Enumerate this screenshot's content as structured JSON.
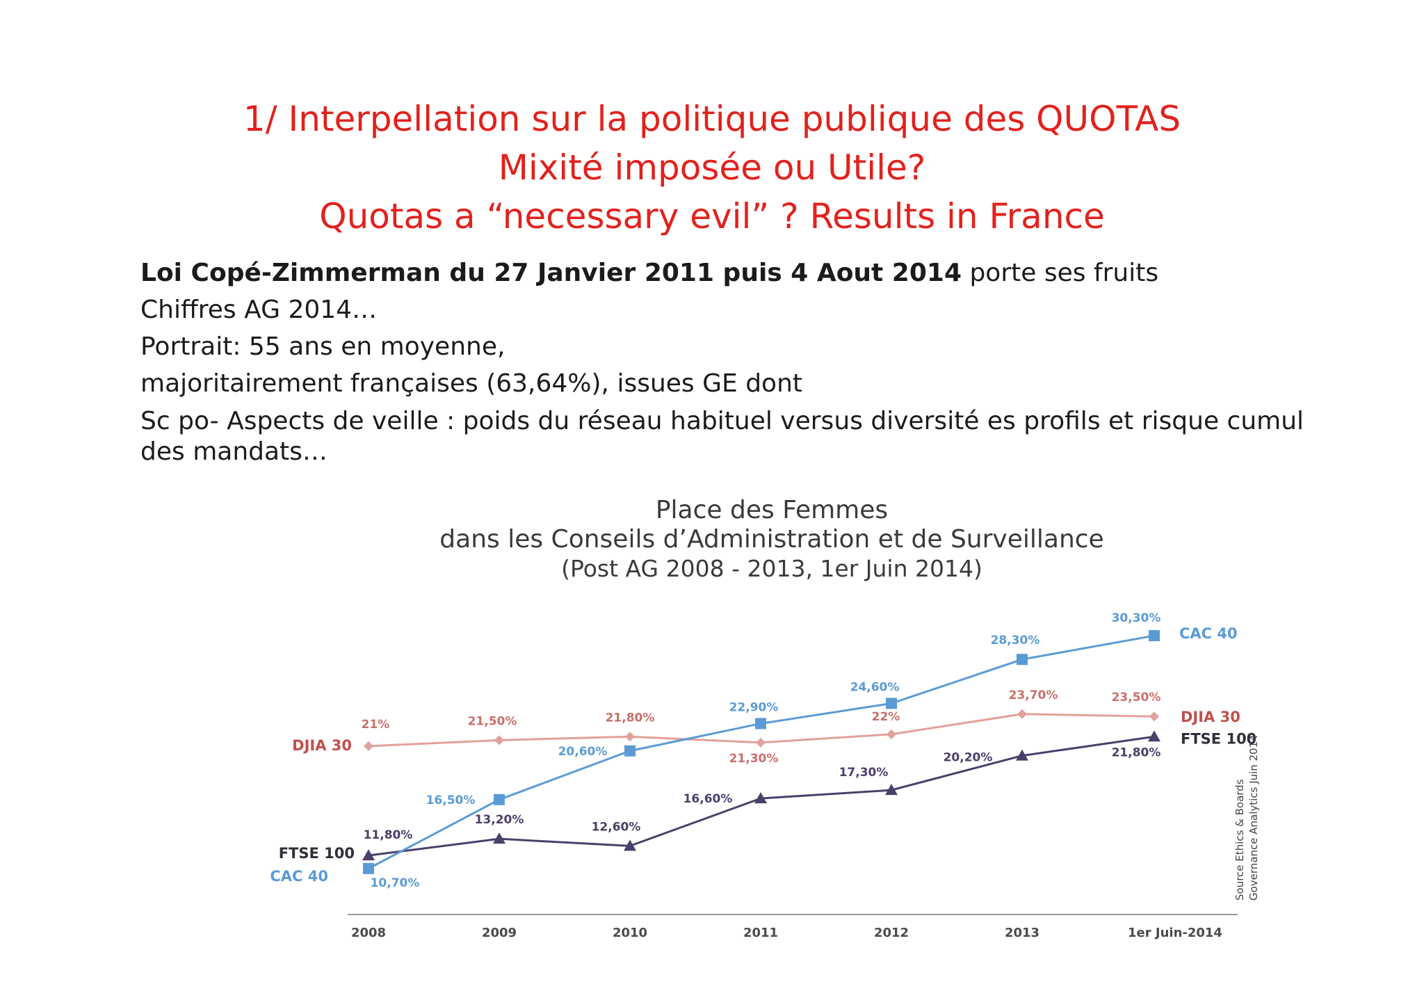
{
  "slide": {
    "title_lines": [
      "1/ Interpellation sur la politique publique des QUOTAS",
      "Mixité imposée ou Utile?",
      "Quotas a “necessary evil” ?  Results in France"
    ],
    "body": {
      "line1_bold": "Loi Copé-Zimmerman du 27 Janvier 2011 puis 4 Aout 2014",
      "line1_rest": " porte ses fruits",
      "line2": "Chiffres AG 2014…",
      "line3": "Portrait: 55 ans en moyenne,",
      "line4": "majoritairement françaises (63,64%), issues GE dont",
      "line5": "Sc po- Aspects de veille :  poids du réseau habituel versus diversité es profils et  risque  cumul des mandats…"
    }
  },
  "chart_data": {
    "type": "line",
    "title_lines": [
      "Place des Femmes",
      "dans les Conseils d’Administration et de Surveillance",
      "(Post AG 2008 - 2013, 1er Juin 2014)"
    ],
    "categories": [
      "2008",
      "2009",
      "2010",
      "2011",
      "2012",
      "2013",
      "1er Juin-2014"
    ],
    "ylim": [
      8,
      32
    ],
    "grid": false,
    "legend": "inline labels at line ends",
    "source_lines": [
      "Source Ethics & Boards",
      "Governance Analytics Juin 2014"
    ],
    "series": [
      {
        "name": "CAC 40",
        "color": "#5b9bd5",
        "marker": "square",
        "values": [
          10.7,
          16.5,
          20.6,
          22.9,
          24.6,
          28.3,
          30.3
        ],
        "labels": [
          "10,70%",
          "16,50%",
          "20,60%",
          "22,90%",
          "24,60%",
          "28,30%",
          "30,30%"
        ]
      },
      {
        "name": "DJIA 30",
        "color": "#e3a09c",
        "marker": "diamond",
        "values": [
          21,
          21.5,
          21.8,
          21.3,
          22,
          23.7,
          23.5
        ],
        "labels": [
          "21%",
          "21,50%",
          "21,80%",
          "21,30%",
          "22%",
          "23,70%",
          "23,50%"
        ]
      },
      {
        "name": "FTSE 100",
        "color": "#4b3f6b",
        "marker": "triangle",
        "values": [
          11.8,
          13.2,
          12.6,
          16.6,
          17.3,
          20.2,
          21.8
        ],
        "labels": [
          "11,80%",
          "13,20%",
          "12,60%",
          "16,60%",
          "17,30%",
          "20,20%",
          "21,80%"
        ]
      }
    ]
  }
}
